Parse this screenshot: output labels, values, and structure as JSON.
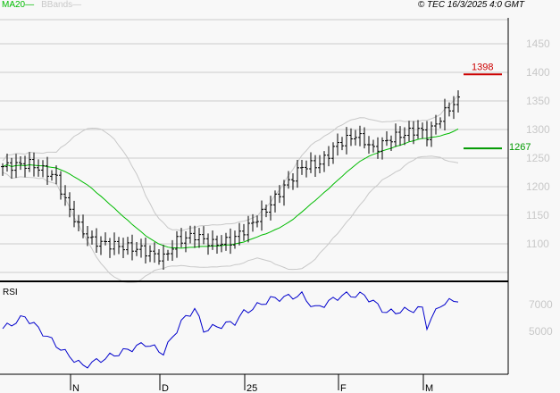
{
  "chart_data": {
    "type": "ohlc",
    "legend": [
      {
        "name": "MA20",
        "color": "#00bb00"
      },
      {
        "name": "BBands",
        "color": "#c8c8c8"
      }
    ],
    "copyright": "© TEC 16/3/2025 4:0 GMT",
    "price_axis": {
      "ylim": [
        1050,
        1500
      ],
      "ticks": [
        "1450",
        "1400",
        "1350",
        "1300",
        "1250",
        "1200",
        "1150",
        "1100"
      ]
    },
    "resistance": {
      "value": 1398,
      "label": "1398",
      "color": "#cc0000"
    },
    "support": {
      "value": 1267,
      "label": "1267",
      "color": "#009900"
    },
    "close_keypoints": [
      [
        0,
        1235
      ],
      [
        6,
        1240
      ],
      [
        10,
        1225
      ],
      [
        12,
        1215
      ],
      [
        14,
        1175
      ],
      [
        17,
        1130
      ],
      [
        20,
        1105
      ],
      [
        23,
        1100
      ],
      [
        27,
        1095
      ],
      [
        31,
        1090
      ],
      [
        34,
        1080
      ],
      [
        36,
        1075
      ],
      [
        39,
        1105
      ],
      [
        43,
        1115
      ],
      [
        47,
        1100
      ],
      [
        51,
        1105
      ],
      [
        55,
        1130
      ],
      [
        59,
        1160
      ],
      [
        63,
        1200
      ],
      [
        67,
        1235
      ],
      [
        71,
        1240
      ],
      [
        75,
        1275
      ],
      [
        79,
        1290
      ],
      [
        81,
        1280
      ],
      [
        83,
        1265
      ],
      [
        87,
        1285
      ],
      [
        91,
        1295
      ],
      [
        93,
        1300
      ],
      [
        95,
        1290
      ],
      [
        97,
        1310
      ],
      [
        99,
        1330
      ],
      [
        101,
        1345
      ],
      [
        102,
        1350
      ]
    ],
    "rsi": {
      "label": "RSI",
      "ticks": [
        "7000",
        "5000"
      ],
      "keypoints": [
        [
          0,
          52
        ],
        [
          5,
          61
        ],
        [
          14,
          34
        ],
        [
          18,
          24
        ],
        [
          32,
          41
        ],
        [
          36,
          34
        ],
        [
          40,
          57
        ],
        [
          43,
          67
        ],
        [
          45,
          51
        ],
        [
          52,
          57
        ],
        [
          54,
          64
        ],
        [
          60,
          74
        ],
        [
          67,
          77
        ],
        [
          70,
          67
        ],
        [
          76,
          77
        ],
        [
          81,
          77
        ],
        [
          86,
          64
        ],
        [
          94,
          67
        ],
        [
          95,
          54
        ],
        [
          98,
          70
        ],
        [
          102,
          74
        ]
      ]
    },
    "x_axis": {
      "labels": [
        {
          "label": "N",
          "bar": 15
        },
        {
          "label": "D",
          "bar": 35
        },
        {
          "label": "25",
          "bar": 54
        },
        {
          "label": "F",
          "bar": 75
        },
        {
          "label": "M",
          "bar": 94
        }
      ]
    }
  }
}
